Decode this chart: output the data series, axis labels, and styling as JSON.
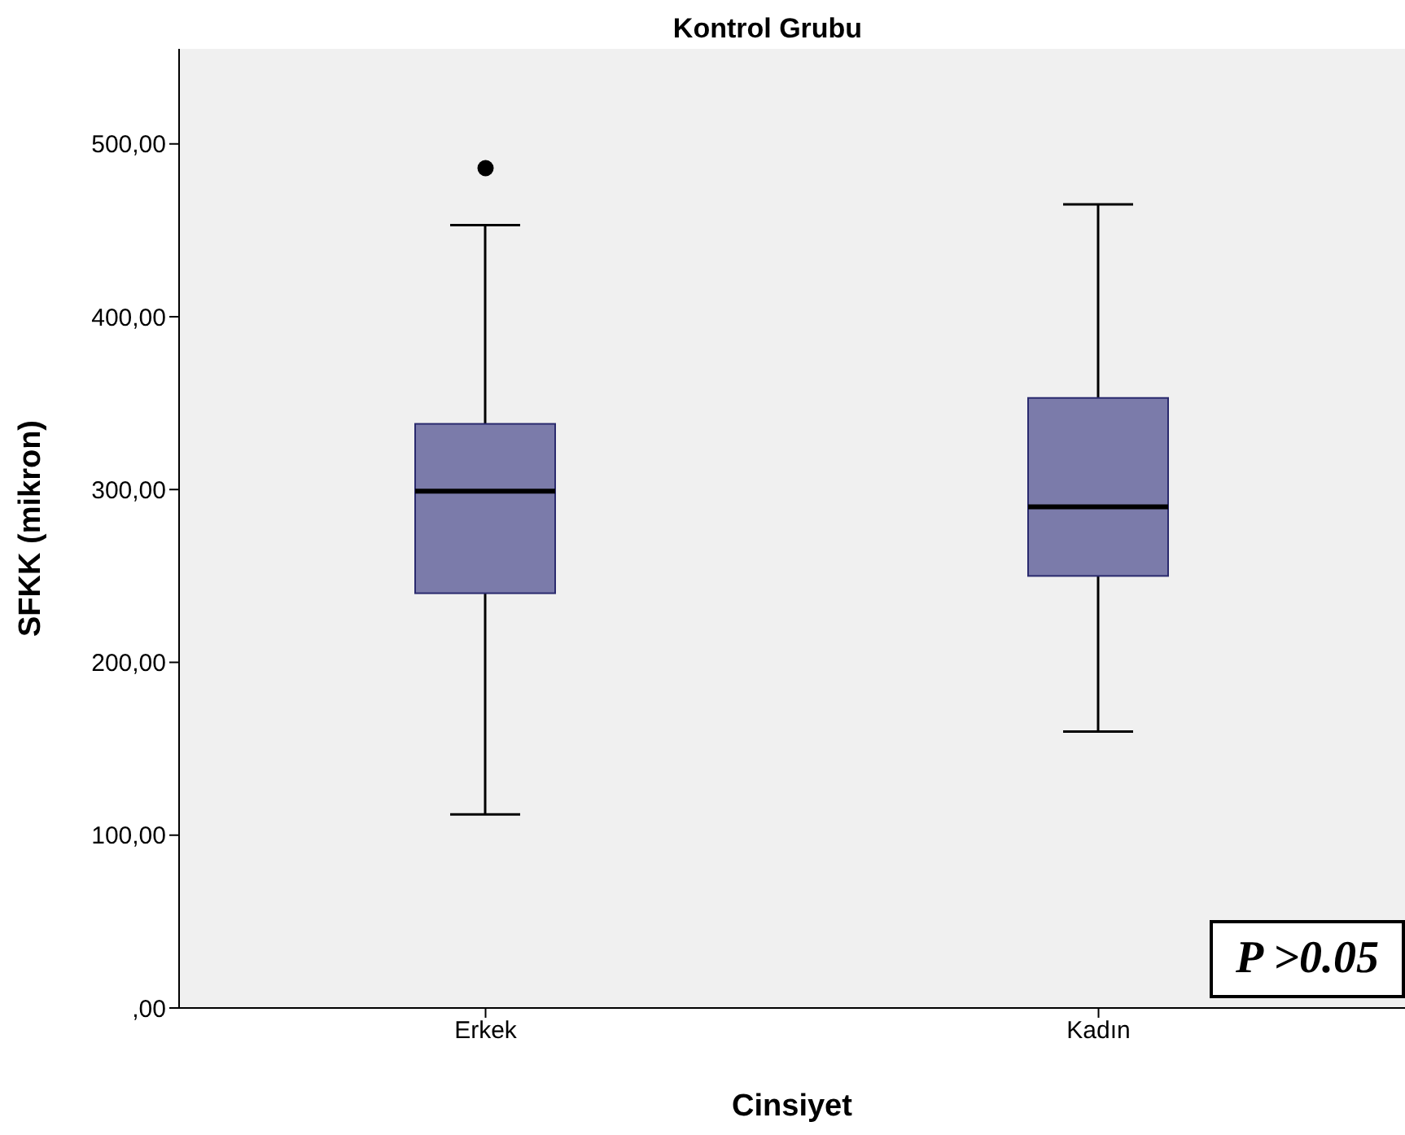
{
  "chart_data": {
    "type": "box",
    "title": "Kontrol Grubu",
    "xlabel": "Cinsiyet",
    "ylabel": "SFKK (mikron)",
    "categories": [
      "Erkek",
      "Kadın"
    ],
    "boxes": [
      {
        "low": 112,
        "q1": 240,
        "median": 299,
        "q3": 338,
        "high": 453,
        "outliers": [
          486
        ]
      },
      {
        "low": 160,
        "q1": 250,
        "median": 290,
        "q3": 353,
        "high": 465
      }
    ],
    "color": "#7b7baa",
    "ylim": [
      0,
      555
    ],
    "yticks": [
      {
        "value": 0,
        "label": ",00"
      },
      {
        "value": 100,
        "label": "100,00"
      },
      {
        "value": 200,
        "label": "200,00"
      },
      {
        "value": 300,
        "label": "300,00"
      },
      {
        "value": 400,
        "label": "400,00"
      },
      {
        "value": 500,
        "label": "500,00"
      }
    ],
    "annotations": [
      "P >0.05"
    ]
  }
}
